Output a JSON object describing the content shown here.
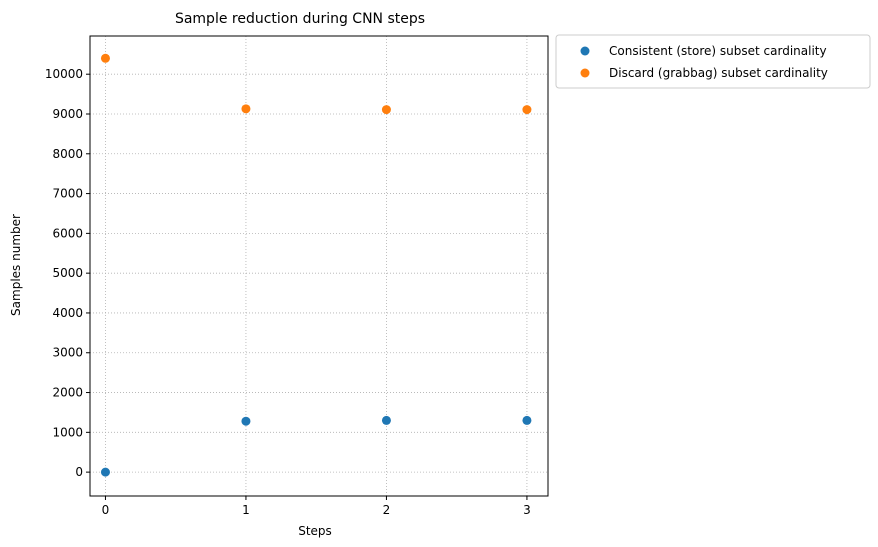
{
  "chart_data": {
    "type": "scatter",
    "title": "Sample reduction during CNN steps",
    "xlabel": "Steps",
    "ylabel": "Samples number",
    "x": [
      0,
      1,
      2,
      3
    ],
    "xticks": [
      "0",
      "1",
      "2",
      "3"
    ],
    "yticks": [
      "0",
      "1000",
      "2000",
      "3000",
      "4000",
      "5000",
      "6000",
      "7000",
      "8000",
      "9000",
      "10000"
    ],
    "xlim": [
      -0.11,
      3.15
    ],
    "ylim": [
      -600,
      10960
    ],
    "grid": true,
    "legend_position": "outside upper right",
    "series": [
      {
        "name": "Consistent (store) subset cardinality",
        "color": "#1f77b4",
        "values": [
          0,
          1280,
          1300,
          1300
        ]
      },
      {
        "name": "Discard (grabbag) subset cardinality",
        "color": "#ff7f0e",
        "values": [
          10400,
          9130,
          9110,
          9110
        ]
      }
    ]
  }
}
